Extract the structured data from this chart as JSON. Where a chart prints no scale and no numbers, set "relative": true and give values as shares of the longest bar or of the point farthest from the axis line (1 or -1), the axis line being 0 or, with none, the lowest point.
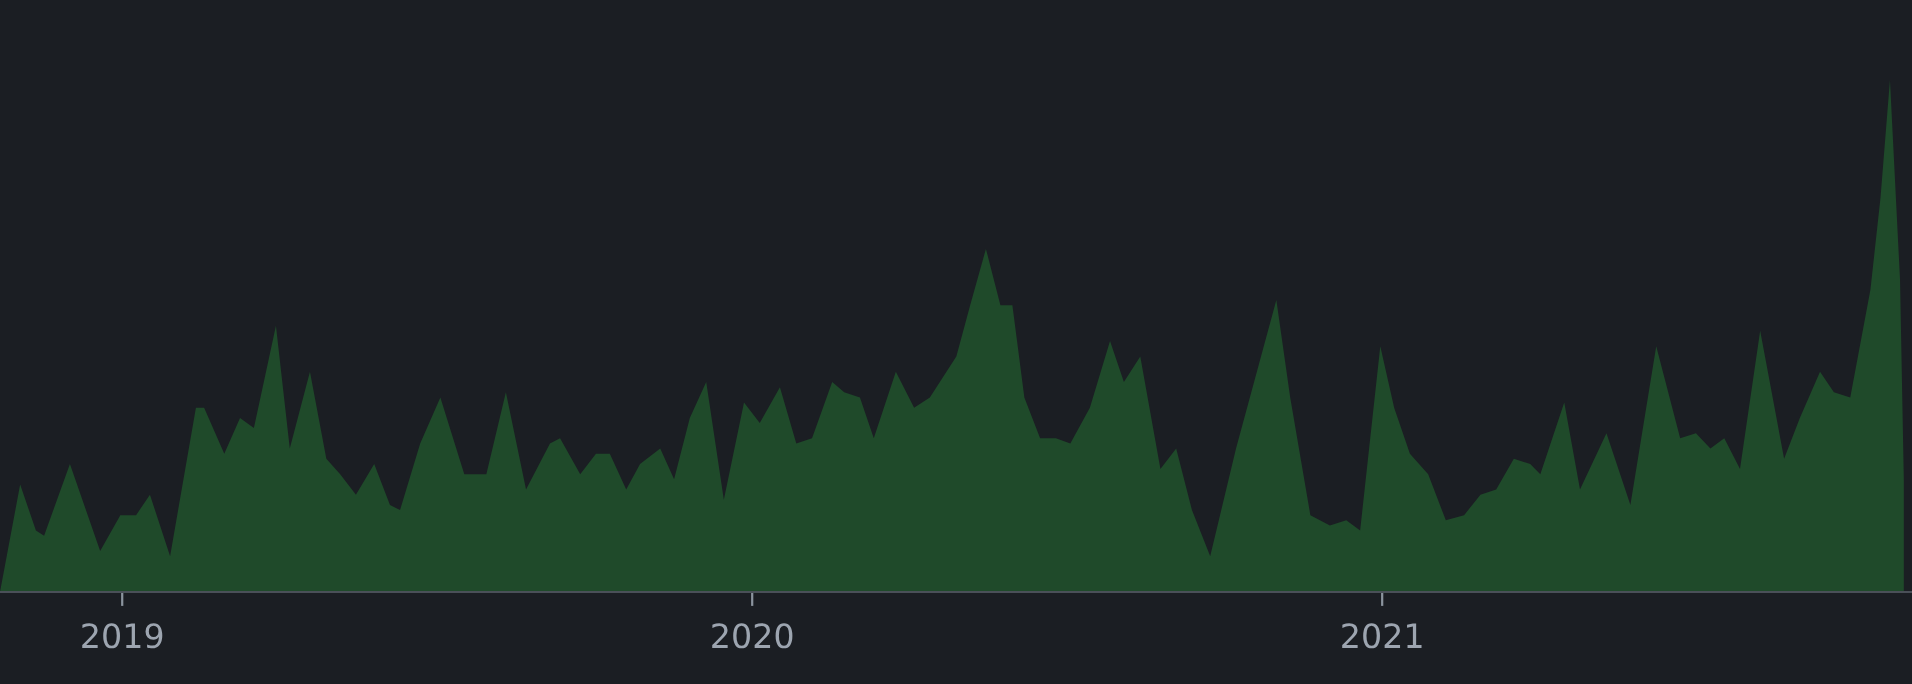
{
  "chart_data": {
    "type": "area",
    "relative": true,
    "xlim": [
      2018.806,
      2021.841
    ],
    "xticks": [
      2019,
      2020,
      2021
    ],
    "grid": false,
    "legend": false,
    "x": [
      2018.806,
      2018.838,
      2018.863,
      2018.876,
      2018.917,
      2018.965,
      2018.997,
      2019.022,
      2019.044,
      2019.076,
      2019.117,
      2019.13,
      2019.162,
      2019.187,
      2019.209,
      2019.244,
      2019.266,
      2019.298,
      2019.324,
      2019.346,
      2019.371,
      2019.4,
      2019.425,
      2019.441,
      2019.473,
      2019.505,
      2019.543,
      2019.578,
      2019.609,
      2019.641,
      2019.679,
      2019.695,
      2019.727,
      2019.752,
      2019.774,
      2019.8,
      2019.822,
      2019.854,
      2019.876,
      2019.901,
      2019.927,
      2019.955,
      2019.987,
      2020.012,
      2020.044,
      2020.07,
      2020.095,
      2020.127,
      2020.146,
      2020.171,
      2020.193,
      2020.228,
      2020.257,
      2020.282,
      2020.324,
      2020.346,
      2020.371,
      2020.394,
      2020.413,
      2020.432,
      2020.457,
      2020.482,
      2020.505,
      2020.536,
      2020.568,
      2020.59,
      2020.616,
      2020.648,
      2020.673,
      2020.698,
      2020.727,
      2020.768,
      2020.832,
      2020.854,
      2020.886,
      2020.917,
      2020.943,
      2020.965,
      2020.997,
      2021.019,
      2021.044,
      2021.073,
      2021.101,
      2021.13,
      2021.156,
      2021.181,
      2021.209,
      2021.235,
      2021.251,
      2021.289,
      2021.314,
      2021.356,
      2021.394,
      2021.435,
      2021.473,
      2021.498,
      2021.521,
      2021.543,
      2021.568,
      2021.6,
      2021.638,
      2021.663,
      2021.695,
      2021.717,
      2021.743,
      2021.775,
      2021.791,
      2021.806,
      2021.822,
      2021.828
    ],
    "series": [
      {
        "color": "#1f4a2a",
        "values": [
          0,
          0.21,
          0.12,
          0.11,
          0.25,
          0.08,
          0.15,
          0.15,
          0.19,
          0.07,
          0.36,
          0.36,
          0.27,
          0.34,
          0.32,
          0.52,
          0.28,
          0.43,
          0.26,
          0.23,
          0.19,
          0.25,
          0.17,
          0.16,
          0.29,
          0.38,
          0.23,
          0.23,
          0.39,
          0.2,
          0.29,
          0.3,
          0.23,
          0.27,
          0.27,
          0.2,
          0.25,
          0.28,
          0.22,
          0.34,
          0.41,
          0.18,
          0.37,
          0.33,
          0.4,
          0.29,
          0.3,
          0.41,
          0.39,
          0.38,
          0.3,
          0.43,
          0.36,
          0.38,
          0.46,
          0.56,
          0.67,
          0.56,
          0.56,
          0.38,
          0.3,
          0.3,
          0.29,
          0.36,
          0.49,
          0.41,
          0.46,
          0.24,
          0.28,
          0.16,
          0.07,
          0.28,
          0.57,
          0.38,
          0.15,
          0.13,
          0.14,
          0.12,
          0.48,
          0.36,
          0.27,
          0.23,
          0.14,
          0.15,
          0.19,
          0.2,
          0.26,
          0.25,
          0.23,
          0.37,
          0.2,
          0.31,
          0.17,
          0.48,
          0.3,
          0.31,
          0.28,
          0.3,
          0.24,
          0.51,
          0.26,
          0.34,
          0.43,
          0.39,
          0.38,
          0.59,
          0.77,
          1,
          0.61,
          0.22
        ]
      }
    ]
  }
}
